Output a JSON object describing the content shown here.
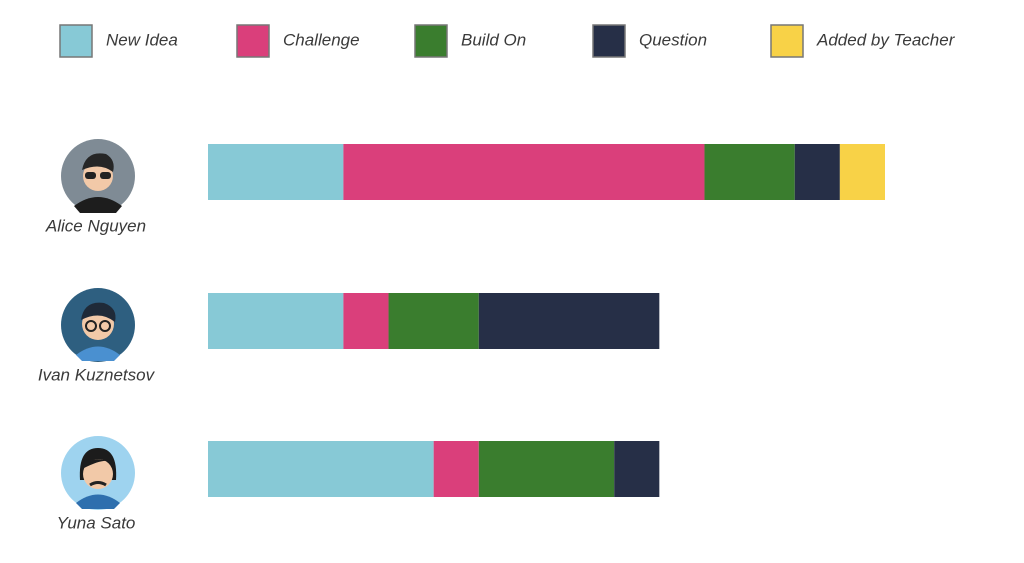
{
  "chart_data": {
    "type": "stacked-bar",
    "categories": [
      "Alice Nguyen",
      "Ivan Kuznetsov",
      "Yuna Sato"
    ],
    "series": [
      {
        "name": "New Idea",
        "color": "#87c9d6",
        "values": [
          3,
          3,
          5
        ]
      },
      {
        "name": "Challenge",
        "color": "#da3f7b",
        "values": [
          8,
          1,
          1
        ]
      },
      {
        "name": "Build On",
        "color": "#3a7d2e",
        "values": [
          2,
          2,
          3
        ]
      },
      {
        "name": "Question",
        "color": "#262f47",
        "values": [
          1,
          4,
          1
        ]
      },
      {
        "name": "Added by Teacher",
        "color": "#f8d247",
        "values": [
          1,
          0,
          0
        ]
      }
    ]
  }
}
